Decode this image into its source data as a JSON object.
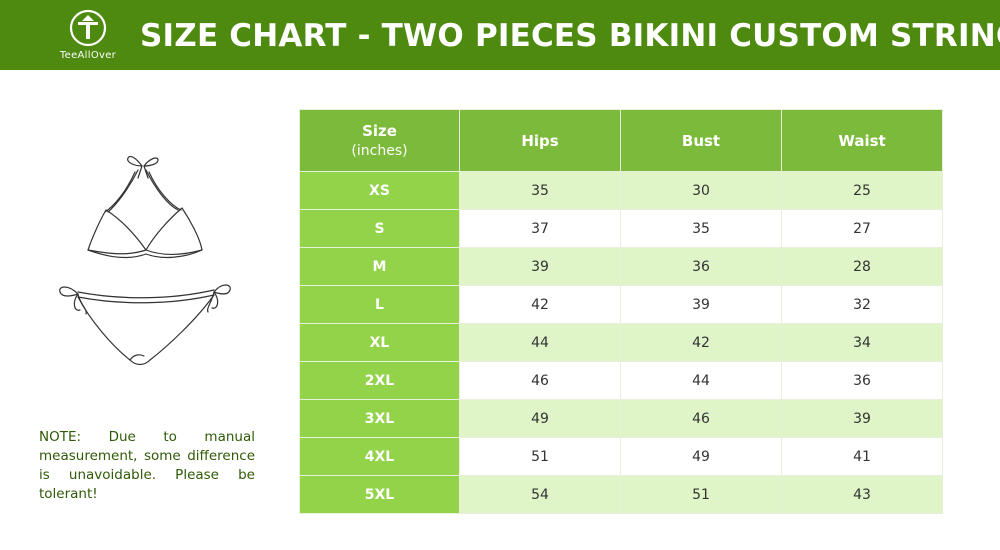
{
  "header": {
    "title": "SIZE CHART - TWO PIECES BIKINI CUSTOM STRING",
    "logo_text": "TeeAllOver",
    "background_color": "#4f8a10"
  },
  "note": "NOTE: Due to manual measurement, some difference is unavoidable. Please be tolerant!",
  "table": {
    "headers": {
      "size": "Size",
      "size_unit": "(inches)",
      "hips": "Hips",
      "bust": "Bust",
      "waist": "Waist"
    },
    "rows": [
      {
        "size": "XS",
        "hips": "35",
        "bust": "30",
        "waist": "25"
      },
      {
        "size": "S",
        "hips": "37",
        "bust": "35",
        "waist": "27"
      },
      {
        "size": "M",
        "hips": "39",
        "bust": "36",
        "waist": "28"
      },
      {
        "size": "L",
        "hips": "42",
        "bust": "39",
        "waist": "32"
      },
      {
        "size": "XL",
        "hips": "44",
        "bust": "42",
        "waist": "34"
      },
      {
        "size": "2XL",
        "hips": "46",
        "bust": "44",
        "waist": "36"
      },
      {
        "size": "3XL",
        "hips": "49",
        "bust": "46",
        "waist": "39"
      },
      {
        "size": "4XL",
        "hips": "51",
        "bust": "49",
        "waist": "41"
      },
      {
        "size": "5XL",
        "hips": "54",
        "bust": "51",
        "waist": "43"
      }
    ],
    "colors": {
      "header_bg": "#7cba3b",
      "size_cell_bg": "#93d34a",
      "stripe_bg": "#dff5c8"
    }
  }
}
